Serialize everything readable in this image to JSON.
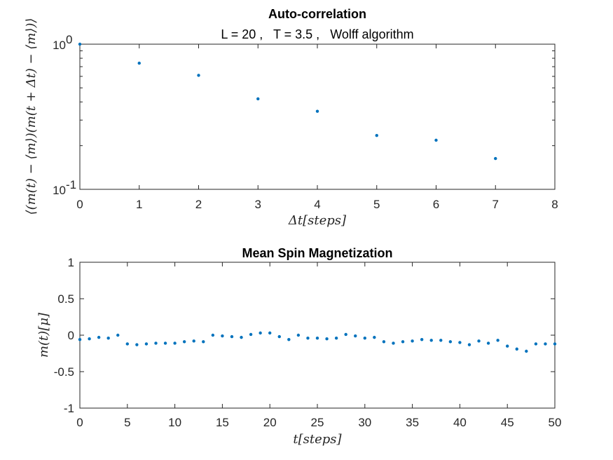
{
  "colors": {
    "marker": "#0072BD",
    "axis": "#262626",
    "background": "#ffffff"
  },
  "chart_data": [
    {
      "type": "scatter",
      "title": "Auto-correlation",
      "subtitle": "L = 20 ,   T = 3.5 ,   Wolff algorithm",
      "xlabel": "Δt[steps]",
      "ylabel": "⟨(m(t) − ⟨m⟩)(m(t + Δt) − ⟨m⟩)⟩",
      "xlim": [
        0,
        8
      ],
      "ylim": [
        0.1,
        1
      ],
      "yscale": "log",
      "grid": false,
      "xticks": [
        0,
        1,
        2,
        3,
        4,
        5,
        6,
        7,
        8
      ],
      "xtick_labels": [
        "0",
        "1",
        "2",
        "3",
        "4",
        "5",
        "6",
        "7",
        "8"
      ],
      "yticks": [
        {
          "value": 1,
          "base": "10",
          "exp": "0"
        },
        {
          "value": 0.1,
          "base": "10",
          "exp": "-1"
        }
      ],
      "x": [
        0,
        1,
        2,
        3,
        4,
        5,
        6,
        7
      ],
      "y": [
        1.0,
        0.74,
        0.61,
        0.42,
        0.345,
        0.235,
        0.218,
        0.163
      ]
    },
    {
      "type": "scatter",
      "title": "Mean Spin Magnetization",
      "xlabel": "t[steps]",
      "ylabel": "m(t)[μ]",
      "xlim": [
        0,
        50
      ],
      "ylim": [
        -1,
        1
      ],
      "grid": false,
      "xticks": [
        0,
        5,
        10,
        15,
        20,
        25,
        30,
        35,
        40,
        45,
        50
      ],
      "xtick_labels": [
        "0",
        "5",
        "10",
        "15",
        "20",
        "25",
        "30",
        "35",
        "40",
        "45",
        "50"
      ],
      "yticks": [
        -1,
        -0.5,
        0,
        0.5,
        1
      ],
      "ytick_labels": [
        "-1",
        "-0.5",
        "0",
        "0.5",
        "1"
      ],
      "x": [
        0,
        1,
        2,
        3,
        4,
        5,
        6,
        7,
        8,
        9,
        10,
        11,
        12,
        13,
        14,
        15,
        16,
        17,
        18,
        19,
        20,
        21,
        22,
        23,
        24,
        25,
        26,
        27,
        28,
        29,
        30,
        31,
        32,
        33,
        34,
        35,
        36,
        37,
        38,
        39,
        40,
        41,
        42,
        43,
        44,
        45,
        46,
        47,
        48,
        49,
        50
      ],
      "y": [
        -0.06,
        -0.05,
        -0.03,
        -0.04,
        0.0,
        -0.12,
        -0.13,
        -0.12,
        -0.11,
        -0.11,
        -0.11,
        -0.09,
        -0.08,
        -0.09,
        0.0,
        -0.01,
        -0.02,
        -0.03,
        0.01,
        0.03,
        0.03,
        -0.02,
        -0.06,
        0.0,
        -0.04,
        -0.04,
        -0.05,
        -0.04,
        0.01,
        -0.01,
        -0.04,
        -0.03,
        -0.09,
        -0.11,
        -0.09,
        -0.08,
        -0.06,
        -0.07,
        -0.07,
        -0.09,
        -0.1,
        -0.13,
        -0.08,
        -0.11,
        -0.07,
        -0.15,
        -0.19,
        -0.22,
        -0.12,
        -0.12,
        -0.12
      ]
    }
  ]
}
